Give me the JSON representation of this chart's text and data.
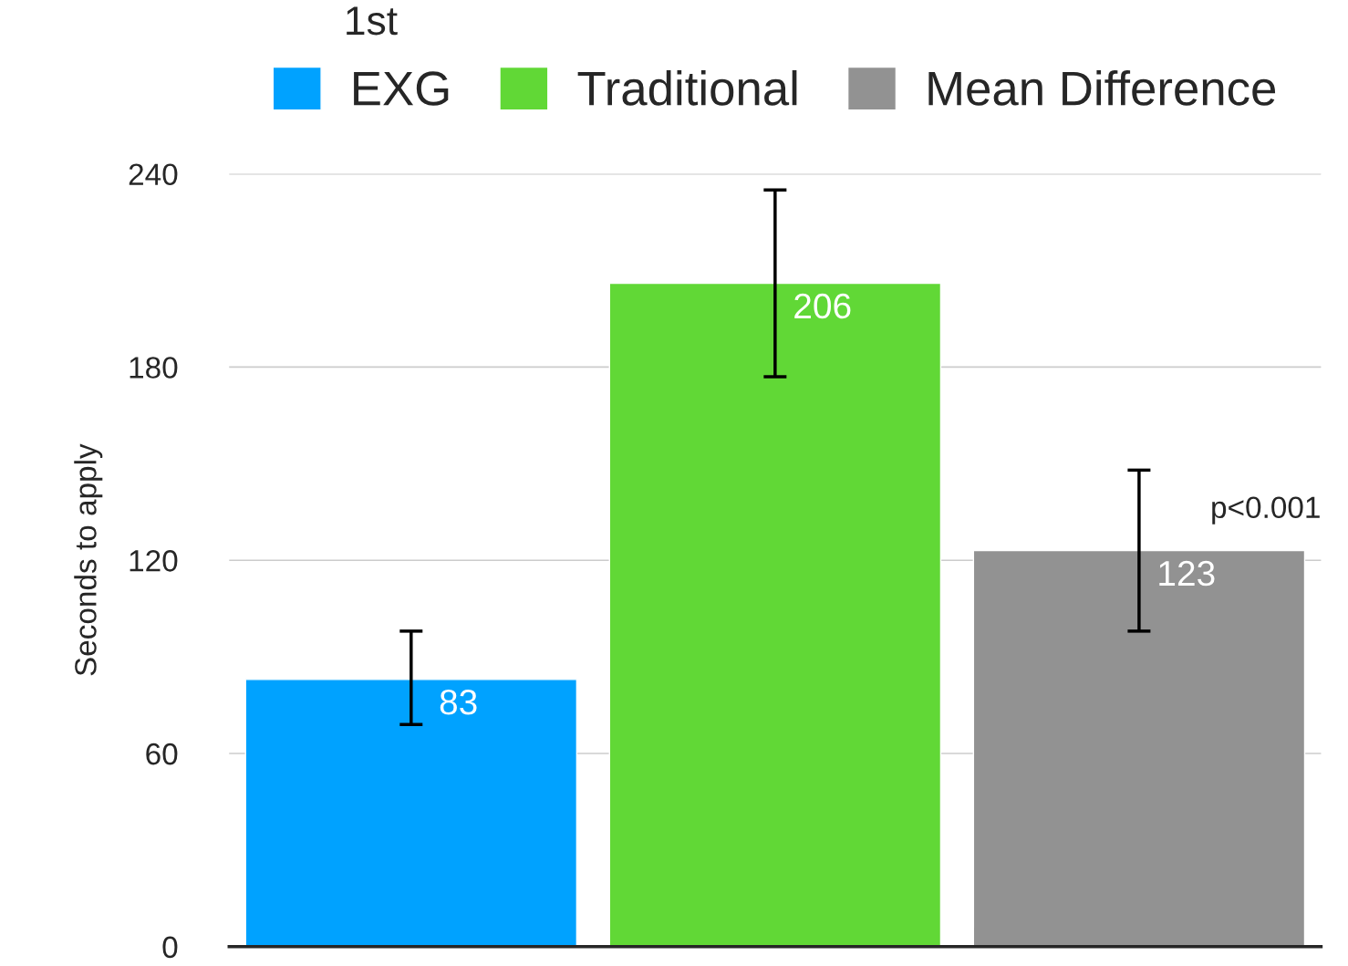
{
  "chart_data": {
    "type": "bar",
    "ylabel": "Seconds to apply",
    "categories": [
      null,
      null,
      null
    ],
    "series": [
      {
        "name": "EXG",
        "color": "#00a2ff",
        "values": [
          83,
          null,
          null
        ],
        "errors": [
          [
            69,
            98
          ],
          null,
          null
        ]
      },
      {
        "name": "Traditional",
        "color": "#61d836",
        "values": [
          null,
          206,
          null
        ],
        "errors": [
          null,
          [
            177,
            235
          ],
          null
        ]
      },
      {
        "name": "Mean Difference",
        "color": "#929292",
        "values": [
          null,
          null,
          123
        ],
        "errors": [
          null,
          null,
          [
            98,
            148
          ]
        ]
      }
    ],
    "ylim": [
      0,
      240
    ],
    "yticks": [
      0,
      60,
      120,
      180,
      240
    ],
    "grid": "y",
    "legend": "top",
    "data_labels": true,
    "annotations": [
      "1st",
      "p<0.001"
    ]
  }
}
